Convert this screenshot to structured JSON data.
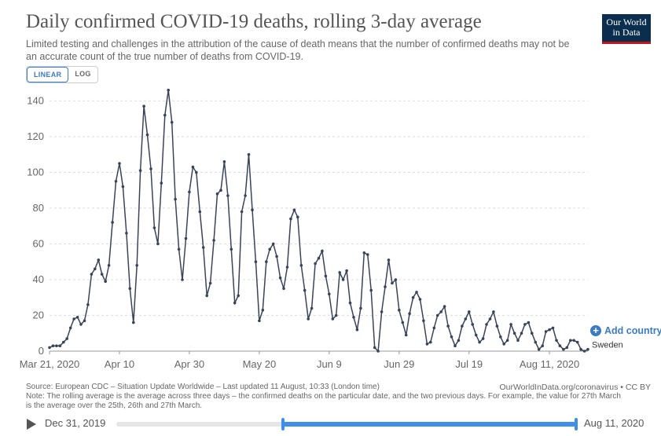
{
  "header": {
    "title": "Daily confirmed COVID-19 deaths, rolling 3-day average",
    "subtitle": "Limited testing and challenges in the attribution of the cause of death means that the number of confirmed deaths may not be an accurate count of the true number of deaths from COVID-19.",
    "logo_line1": "Our World",
    "logo_line2": "in Data"
  },
  "scale_toggle": {
    "linear_label": "LINEAR",
    "log_label": "LOG",
    "selected": "LINEAR"
  },
  "add_country_label": "Add country",
  "footer": {
    "source": "Source: European CDC – Situation Update Worldwide – Last updated 11 August, 10:33 (London time)",
    "url": "OurWorldInData.org/coronavirus • CC BY",
    "note": "Note: The rolling average is the average across three days – the confirmed deaths on the particular date, and the two previous days. For example, the value for 27th March is the average over the 25th, 26th and 27th March."
  },
  "timeline": {
    "start_label": "Dec 31, 2019",
    "end_label": "Aug 11, 2020"
  },
  "colors": {
    "line": "#3a4459",
    "accent": "#3d7bc1",
    "grid": "#dddddd"
  },
  "chart_data": {
    "type": "line",
    "title": "Daily confirmed COVID-19 deaths, rolling 3-day average",
    "xlabel": "",
    "ylabel": "",
    "start_date": "2020-03-21",
    "x_ticks": [
      {
        "label": "Mar 21, 2020",
        "day": 0
      },
      {
        "label": "Apr 10",
        "day": 20
      },
      {
        "label": "Apr 30",
        "day": 40
      },
      {
        "label": "May 20",
        "day": 60
      },
      {
        "label": "Jun 9",
        "day": 80
      },
      {
        "label": "Jun 29",
        "day": 100
      },
      {
        "label": "Jul 19",
        "day": 120
      },
      {
        "label": "Aug 11, 2020",
        "day": 143
      }
    ],
    "y_ticks": [
      0,
      20,
      40,
      60,
      80,
      100,
      120,
      140
    ],
    "ylim": [
      0,
      145
    ],
    "grid": true,
    "series": [
      {
        "name": "Sweden",
        "values": [
          2,
          3,
          3,
          3,
          5,
          7,
          13,
          18,
          19,
          15,
          17,
          26,
          43,
          46,
          51,
          43,
          39,
          48,
          72,
          95,
          105,
          92,
          66,
          35,
          16,
          48,
          101,
          137,
          121,
          102,
          69,
          60,
          94,
          132,
          146,
          128,
          85,
          57,
          40,
          63,
          89,
          103,
          100,
          78,
          58,
          31,
          38,
          62,
          88,
          90,
          106,
          87,
          57,
          27,
          31,
          78,
          87,
          110,
          79,
          50,
          17,
          23,
          50,
          57,
          60,
          53,
          41,
          35,
          47,
          74,
          79,
          75,
          48,
          34,
          18,
          24,
          49,
          52,
          56,
          42,
          32,
          18,
          20,
          44,
          40,
          45,
          27,
          19,
          12,
          24,
          55,
          54,
          34,
          2,
          0,
          22,
          36,
          51,
          38,
          40,
          23,
          16,
          9,
          21,
          30,
          33,
          29,
          17,
          4,
          5,
          13,
          20,
          22,
          25,
          14,
          8,
          3,
          6,
          14,
          18,
          22,
          15,
          9,
          5,
          7,
          15,
          18,
          22,
          14,
          8,
          4,
          6,
          15,
          10,
          6,
          10,
          15,
          16,
          10,
          5,
          1,
          3,
          11,
          12,
          13,
          6,
          3,
          1,
          2,
          6,
          6,
          5,
          1,
          0,
          1
        ]
      }
    ]
  }
}
